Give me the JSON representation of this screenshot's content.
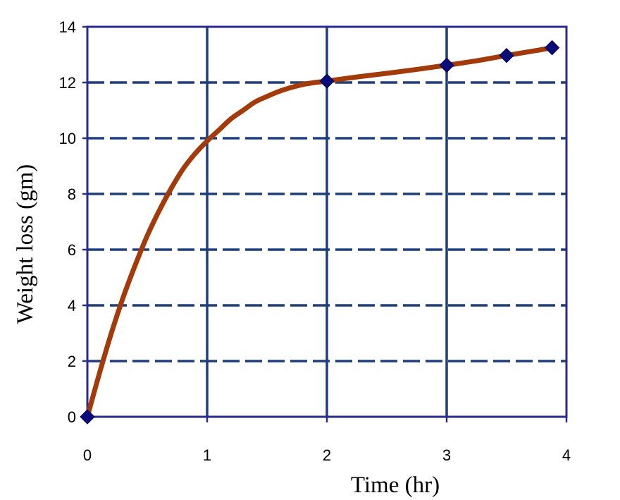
{
  "chart_data": {
    "type": "scatter",
    "title": "",
    "xlabel": "Time (hr)",
    "ylabel": "Weight loss (gm)",
    "xlim": [
      0,
      4
    ],
    "ylim": [
      0,
      14
    ],
    "x_ticks": [
      0,
      1,
      2,
      3,
      4
    ],
    "y_ticks": [
      0,
      2,
      4,
      6,
      8,
      10,
      12,
      14
    ],
    "x_tick_labels": [
      "0",
      "1",
      "2",
      "3",
      "4"
    ],
    "y_tick_labels": [
      "0",
      "2",
      "4",
      "6",
      "8",
      "10",
      "12",
      "14"
    ],
    "grid": true,
    "legend": "none",
    "series": [
      {
        "kind": "markers",
        "x": [
          0,
          2,
          3,
          3.5,
          3.88
        ],
        "y": [
          0,
          12.05,
          12.62,
          12.97,
          13.25
        ]
      },
      {
        "kind": "fitted-curve",
        "x": [
          0,
          0.1,
          0.2,
          0.3,
          0.4,
          0.5,
          0.6,
          0.7,
          0.8,
          0.9,
          1.0,
          1.1,
          1.2,
          1.3,
          1.4,
          1.5,
          1.6,
          1.7,
          1.8,
          1.9,
          2.0,
          2.25,
          2.5,
          2.75,
          3.0,
          3.25,
          3.5,
          3.75,
          3.88
        ],
        "y": [
          0,
          1.55,
          3.0,
          4.3,
          5.45,
          6.5,
          7.4,
          8.2,
          8.9,
          9.45,
          9.9,
          10.3,
          10.7,
          11.0,
          11.3,
          11.5,
          11.68,
          11.82,
          11.93,
          12.0,
          12.05,
          12.2,
          12.33,
          12.47,
          12.62,
          12.78,
          12.97,
          13.15,
          13.25
        ]
      }
    ],
    "colors": {
      "grid": "#1f3f7a",
      "frame": "#2a2a8c",
      "curve": "#a33a0a",
      "marker": "#0b0b7a"
    }
  }
}
